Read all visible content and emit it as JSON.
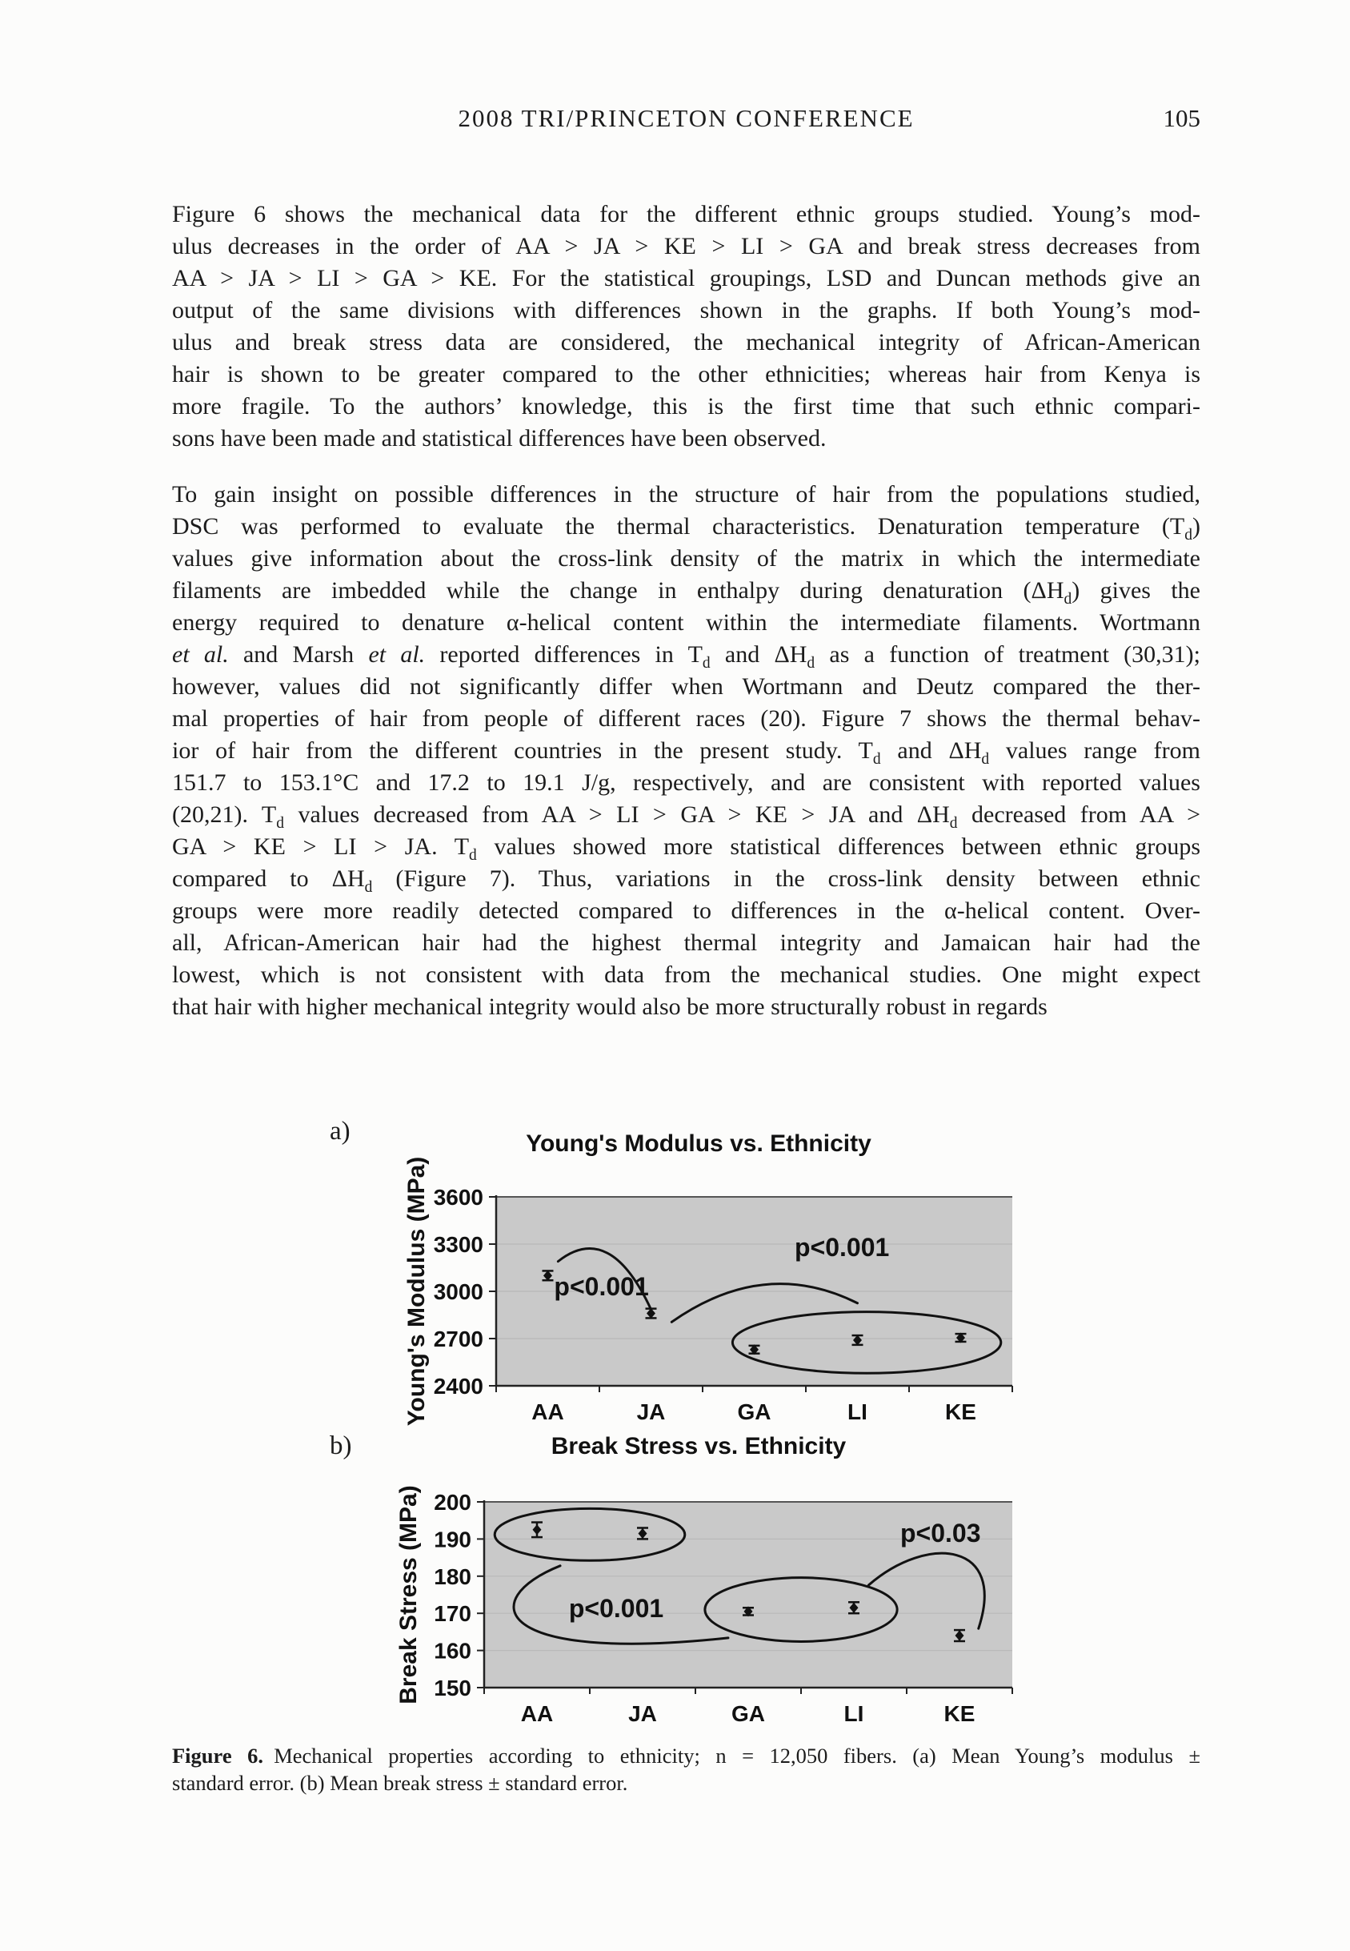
{
  "page": {
    "header": {
      "title": "2008 TRI/PRINCETON CONFERENCE",
      "page_number": "105"
    },
    "paragraphs": [
      {
        "lines": [
          "Figure 6 shows the mechanical data for the different ethnic groups studied. Young’s mod-",
          "ulus decreases in the order of AA > JA > KE > LI > GA and break stress decreases from",
          "AA > JA > LI > GA > KE. For the statistical groupings, LSD and Duncan methods give an",
          "output of the same divisions with differences shown in the graphs. If both Young’s mod-",
          "ulus and break stress data are considered, the mechanical integrity of African-American",
          "hair is shown to be greater compared to the other ethnicities; whereas hair from Kenya is",
          "more fragile. To the authors’ knowledge, this is the first time that such ethnic compari-",
          "sons have been made and statistical differences have been observed."
        ]
      },
      {
        "lines": [
          "To gain insight on possible differences in the structure of hair from the populations studied,",
          "DSC was performed to evaluate the thermal characteristics. Denaturation temperature (T_{d})",
          "values give information about the cross-link density of the matrix in which the intermediate",
          "filaments are imbedded while the change in enthalpy during denaturation (ΔH_{d}) gives the",
          "energy required to denature α-helical content within the intermediate filaments. Wortmann",
          "*et al.* and Marsh *et al.* reported differences in T_{d} and ΔH_{d} as a function of treatment (30,31);",
          "however, values did not significantly differ when Wortmann and Deutz compared the ther-",
          "mal properties of hair from people of different races (20). Figure 7 shows the thermal behav-",
          "ior of hair from the different countries in the present study. T_{d} and ΔH_{d} values range from",
          "151.7 to 153.1°C and 17.2 to 19.1 J/g, respectively, and are consistent with reported values",
          "(20,21). T_{d} values decreased from AA > LI > GA > KE > JA and ΔH_{d} decreased from AA >",
          "GA > KE > LI > JA. T_{d} values showed more statistical differences between ethnic groups",
          "compared to ΔH_{d} (Figure 7). Thus, variations in the cross-link density between ethnic",
          "groups were more readily detected compared to differences in the α-helical content. Over-",
          "all, African-American hair had the highest thermal integrity and Jamaican hair had the",
          "lowest, which is not consistent with data from the mechanical studies. One might expect",
          "that hair with higher mechanical integrity would also be more structurally robust in regards"
        ]
      }
    ],
    "figure_caption": {
      "lines": [
        "**Figure 6.** Mechanical properties according to ethnicity; n = 12,050 fibers. (a) Mean Young’s modulus ±",
        "standard error. (b) Mean break stress ± standard error."
      ]
    }
  },
  "style": {
    "plot_bg": "#c9c9c9",
    "grid_color": "#b9b9b9",
    "ink": "#111111"
  },
  "chart_data": [
    {
      "type": "scatter",
      "panel": "a)",
      "title": "Young's Modulus vs. Ethnicity",
      "xlabel": "",
      "ylabel": "Young's Modulus (MPa)",
      "categories": [
        "AA",
        "JA",
        "GA",
        "LI",
        "KE"
      ],
      "values": [
        3100,
        2860,
        2630,
        2690,
        2705
      ],
      "errors": [
        30,
        30,
        25,
        30,
        25
      ],
      "ylim": [
        2400,
        3600
      ],
      "yticks": [
        2400,
        2700,
        3000,
        3300,
        3600
      ],
      "grid": "horizontal-faint",
      "legend": "none",
      "annotations": [
        {
          "text": "p<0.001",
          "cat_x": 0.52,
          "value_y": 2975
        },
        {
          "text": "p<0.001",
          "cat_x": 2.85,
          "value_y": 3225
        }
      ],
      "ellipses": [
        {
          "meaning": "GA-LI-KE statistical group",
          "cat_cx": 3.09,
          "value_cy": 2675,
          "rx_cat": 1.3,
          "ry_value": 195
        }
      ],
      "arcs": [
        {
          "meaning": "AA vs JA comparison",
          "pts": [
            [
              0.1,
              3190
            ],
            [
              0.6,
              3450
            ],
            [
              1.0,
              2885
            ]
          ]
        },
        {
          "meaning": "JA vs GA-LI-KE comparison",
          "pts": [
            [
              1.2,
              2805
            ],
            [
              2.1,
              3220
            ],
            [
              3.0,
              2925
            ]
          ]
        }
      ]
    },
    {
      "type": "scatter",
      "panel": "b)",
      "title": "Break Stress vs. Ethnicity",
      "xlabel": "",
      "ylabel": "Break Stress (MPa)",
      "categories": [
        "AA",
        "JA",
        "GA",
        "LI",
        "KE"
      ],
      "values": [
        192.5,
        191.5,
        170.5,
        171.5,
        164
      ],
      "errors": [
        2,
        1.5,
        1,
        1.5,
        1.5
      ],
      "ylim": [
        150,
        200
      ],
      "yticks": [
        150,
        160,
        170,
        180,
        190,
        200
      ],
      "grid": "horizontal-faint",
      "legend": "none",
      "annotations": [
        {
          "text": "p<0.001",
          "cat_x": 0.75,
          "value_y": 169.0
        },
        {
          "text": "p<0.03",
          "cat_x": 3.82,
          "value_y": 189.2
        }
      ],
      "ellipses": [
        {
          "meaning": "AA-JA statistical group",
          "cat_cx": 0.5,
          "value_cy": 191.2,
          "rx_cat": 0.9,
          "ry_value": 7.0
        },
        {
          "meaning": "GA-LI statistical group",
          "cat_cx": 2.5,
          "value_cy": 171.0,
          "rx_cat": 0.91,
          "ry_value": 8.6
        }
      ],
      "arcs": [
        {
          "meaning": "AA-JA vs GA-LI comparison",
          "pts": [
            [
              0.22,
              182.8
            ],
            [
              -0.58,
              173.7
            ],
            [
              -0.42,
              156.5
            ],
            [
              1.81,
              163.4
            ]
          ]
        },
        {
          "meaning": "GA-LI vs KE comparison",
          "pts": [
            [
              3.14,
              177.6
            ],
            [
              3.7,
              191.4
            ],
            [
              4.45,
              189.2
            ],
            [
              4.18,
              165.9
            ]
          ]
        }
      ]
    }
  ]
}
